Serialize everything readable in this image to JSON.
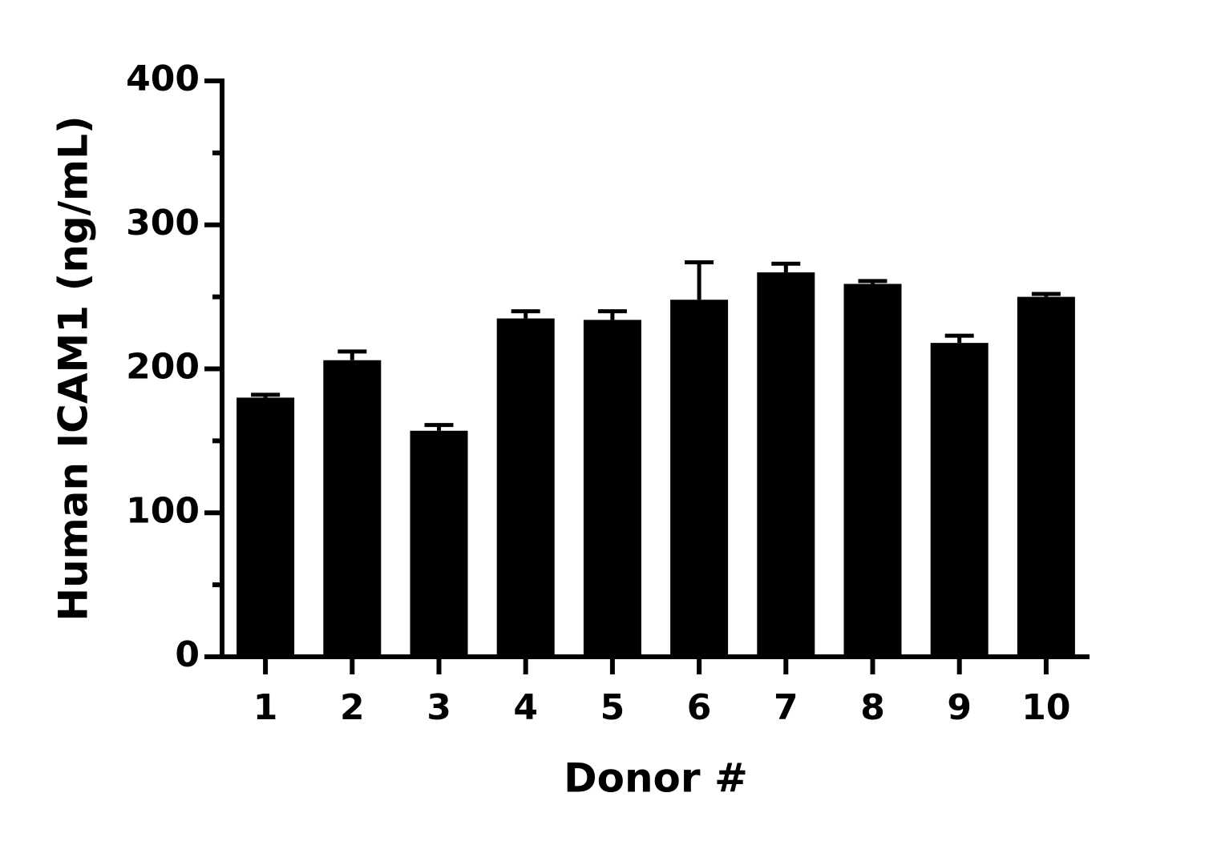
{
  "chart_data": {
    "type": "bar",
    "x_label": "Donor #",
    "y_label": "Human ICAM1 (ng/mL)",
    "categories": [
      "1",
      "2",
      "3",
      "4",
      "5",
      "6",
      "7",
      "8",
      "9",
      "10"
    ],
    "values": [
      180,
      206,
      157,
      235,
      234,
      248,
      267,
      259,
      218,
      250
    ],
    "errors": [
      2,
      6,
      4,
      5,
      6,
      26,
      6,
      2,
      5,
      2
    ],
    "color": "#000000",
    "ylim": [
      0,
      400
    ],
    "yticks": [
      0,
      100,
      200,
      300,
      400
    ],
    "yminorticks": [
      50,
      150,
      250,
      350
    ],
    "grid": false
  }
}
